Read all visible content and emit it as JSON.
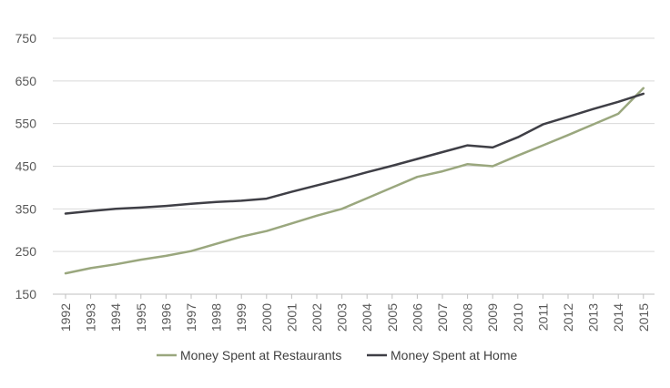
{
  "chart_data": {
    "type": "line",
    "title": "",
    "xlabel": "",
    "ylabel": "",
    "x": [
      "1992",
      "1993",
      "1994",
      "1995",
      "1996",
      "1997",
      "1998",
      "1999",
      "2000",
      "2001",
      "2002",
      "2003",
      "2004",
      "2005",
      "2006",
      "2007",
      "2008",
      "2009",
      "2010",
      "2011",
      "2012",
      "2013",
      "2014",
      "2015"
    ],
    "yticks": [
      150,
      250,
      350,
      450,
      550,
      650,
      750
    ],
    "ylim": [
      150,
      750
    ],
    "grid": true,
    "legend_position": "bottom",
    "series": [
      {
        "name": "Money Spent at Restaurants",
        "color": "#9aa77e",
        "values": [
          199,
          211,
          220,
          231,
          240,
          251,
          268,
          285,
          298,
          316,
          334,
          350,
          375,
          400,
          425,
          438,
          455,
          450,
          475,
          499,
          523,
          548,
          573,
          633
        ]
      },
      {
        "name": "Money Spent at Home",
        "color": "#3f3f46",
        "values": [
          339,
          345,
          350,
          353,
          357,
          362,
          366,
          369,
          374,
          390,
          405,
          420,
          436,
          451,
          467,
          483,
          499,
          494,
          518,
          548,
          566,
          584,
          601,
          620
        ]
      }
    ]
  }
}
